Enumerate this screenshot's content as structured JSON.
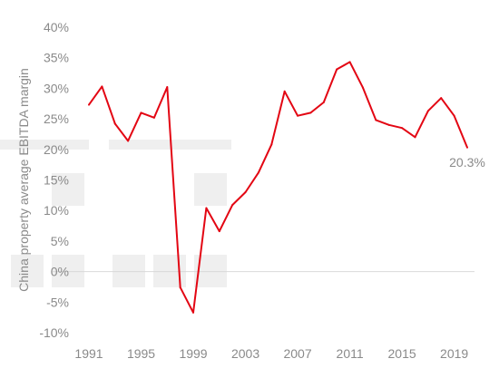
{
  "chart_data": {
    "type": "line",
    "title": "",
    "xlabel": "",
    "ylabel": "China property average EBITDA margin",
    "x": [
      1991,
      1992,
      1993,
      1994,
      1995,
      1996,
      1997,
      1998,
      1999,
      2000,
      2001,
      2002,
      2003,
      2004,
      2005,
      2006,
      2007,
      2008,
      2009,
      2010,
      2011,
      2012,
      2013,
      2014,
      2015,
      2016,
      2017,
      2018,
      2019,
      2020
    ],
    "series": [
      {
        "values": [
          27.3,
          30.3,
          24.2,
          21.4,
          26.0,
          25.2,
          30.2,
          -2.6,
          -6.7,
          10.4,
          6.6,
          10.9,
          13.0,
          16.2,
          20.8,
          29.5,
          25.5,
          26.0,
          27.7,
          33.1,
          34.3,
          30.1,
          24.8,
          24.0,
          23.5,
          22.0,
          26.3,
          28.4,
          25.5,
          20.3
        ]
      }
    ],
    "x_ticks": [
      "1991",
      "1995",
      "1999",
      "2003",
      "2007",
      "2011",
      "2015",
      "2019"
    ],
    "y_ticks": [
      "40%",
      "35%",
      "30%",
      "25%",
      "20%",
      "15%",
      "10%",
      "5%",
      "0%",
      "-5%",
      "-10%"
    ],
    "ylim": [
      -10,
      40
    ],
    "xlim": [
      1991,
      2020
    ],
    "annotation": "20.3%",
    "grid": false,
    "line_color": "#e30613",
    "zero_line_color": "#d9d9d9",
    "placeholder_color": "#efefef"
  }
}
